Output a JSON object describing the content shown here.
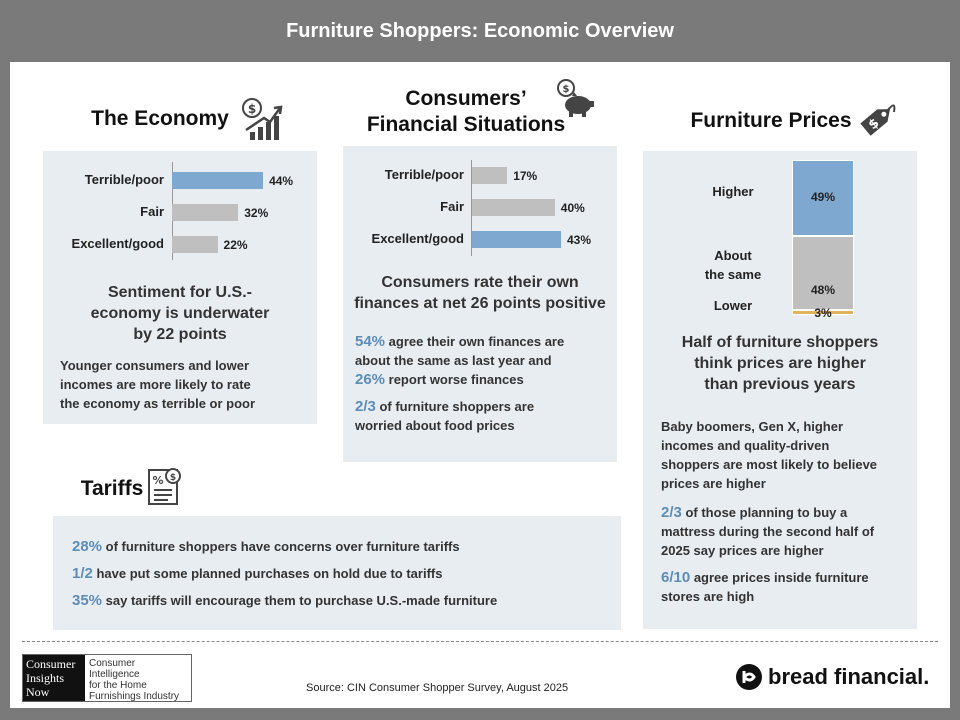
{
  "title": "Furniture Shoppers: Economic Overview",
  "economy": {
    "title": "The Economy",
    "icon": "economy-growth-icon",
    "bars": [
      {
        "label": "Terrible/poor",
        "value": 44,
        "display": "44%",
        "color": "#7ea8cf"
      },
      {
        "label": "Fair",
        "value": 32,
        "display": "32%",
        "color": "#bfbfbf"
      },
      {
        "label": "Excellent/good",
        "value": 22,
        "display": "22%",
        "color": "#bfbfbf"
      }
    ],
    "headline": [
      "Sentiment for U.S.-",
      "economy is underwater",
      "by 22 points"
    ],
    "note": [
      "Younger consumers and lower",
      "incomes are more likely to rate",
      "the economy as terrible or poor"
    ]
  },
  "finances": {
    "title_line1": "Consumers’",
    "title_line2": "Financial Situations",
    "icon": "piggy-bank-icon",
    "bars": [
      {
        "label": "Terrible/poor",
        "value": 17,
        "display": "17%",
        "color": "#bfbfbf"
      },
      {
        "label": "Fair",
        "value": 40,
        "display": "40%",
        "color": "#bfbfbf"
      },
      {
        "label": "Excellent/good",
        "value": 43,
        "display": "43%",
        "color": "#7ea8cf"
      }
    ],
    "headline": [
      "Consumers rate their own",
      "finances at net 26 points positive"
    ],
    "stat1_hl": "54%",
    "stat1_text1": " agree their own finances are",
    "stat1_text2": "about the same as last year and",
    "stat2_hl": "26%",
    "stat2_text": " report worse finances",
    "stat3_hl": "2/3",
    "stat3_text1": " of furniture shoppers are",
    "stat3_text2": "worried about food prices"
  },
  "prices": {
    "title": "Furniture Prices",
    "icon": "price-tag-icon",
    "stack": [
      {
        "label": "Higher",
        "value": 49,
        "display": "49%",
        "color": "#7ea8cf"
      },
      {
        "label_line1": "About",
        "label_line2": "the same",
        "value": 48,
        "display": "48%",
        "color": "#bfbfbf"
      },
      {
        "label": "Lower",
        "value": 3,
        "display": "3%",
        "color": "#e0b25a"
      }
    ],
    "headline": [
      "Half of furniture shoppers",
      "think prices are higher",
      "than previous years"
    ],
    "note": [
      "Baby boomers, Gen X, higher",
      "incomes and quality-driven",
      "shoppers are most likely to believe",
      "prices are higher"
    ],
    "stat1_hl": "2/3",
    "stat1_text1": " of those planning to buy a",
    "stat1_text2": "mattress during the second half of",
    "stat1_text3": "2025 say prices are higher",
    "stat2_hl": "6/10",
    "stat2_text1": " agree prices inside furniture",
    "stat2_text2": "stores are high"
  },
  "tariffs": {
    "title": "Tariffs",
    "icon": "tariff-document-icon",
    "items": [
      {
        "hl": "28%",
        "text": " of furniture shoppers have concerns over furniture tariffs"
      },
      {
        "hl": "1/2",
        "text": " have put some planned purchases on hold due to tariffs"
      },
      {
        "hl": "35%",
        "text": " say tariffs will encourage them to purchase U.S.-made furniture"
      }
    ]
  },
  "footer": {
    "cin_logo_lines": [
      "Consumer",
      "Insights",
      "Now"
    ],
    "cin_tagline": [
      "Consumer Intelligence",
      "for the Home",
      "Furnishings Industry"
    ],
    "source": "Source: CIN Consumer Shopper Survey, August 2025",
    "bread_logo": "bread financial."
  }
}
